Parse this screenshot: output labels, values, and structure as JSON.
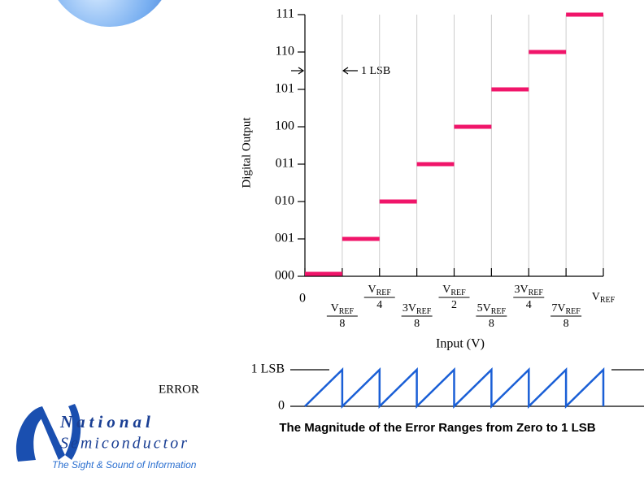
{
  "chart_data": [
    {
      "type": "step",
      "x_label": "Input (V)",
      "y_label": "Digital Output",
      "annotation": "1 LSB",
      "xlim": [
        0,
        1
      ],
      "ylim": [
        0,
        7
      ],
      "xticks": [
        0,
        {
          "value": 0.125,
          "label": {
            "num": "V",
            "sub": "REF",
            "den": "8"
          }
        },
        {
          "value": 0.25,
          "label": {
            "num": "V",
            "sub": "REF",
            "den": "4"
          }
        },
        {
          "value": 0.375,
          "label": {
            "num": "3V",
            "sub": "REF",
            "den": "8"
          }
        },
        {
          "value": 0.5,
          "label": {
            "num": "V",
            "sub": "REF",
            "den": "2"
          }
        },
        {
          "value": 0.625,
          "label": {
            "num": "5V",
            "sub": "REF",
            "den": "8"
          }
        },
        {
          "value": 0.75,
          "label": {
            "num": "3V",
            "sub": "REF",
            "den": "4"
          }
        },
        {
          "value": 0.875,
          "label": {
            "num": "7V",
            "sub": "REF",
            "den": "8"
          }
        },
        {
          "value": 1,
          "label": {
            "num": "V",
            "sub": "REF"
          }
        }
      ],
      "yticks": [
        {
          "value": 0,
          "label": "000"
        },
        {
          "value": 1,
          "label": "001"
        },
        {
          "value": 2,
          "label": "010"
        },
        {
          "value": 3,
          "label": "011"
        },
        {
          "value": 4,
          "label": "100"
        },
        {
          "value": 5,
          "label": "101"
        },
        {
          "value": 6,
          "label": "110"
        },
        {
          "value": 7,
          "label": "111"
        }
      ],
      "grid": true,
      "color": "#f0156a",
      "x": [
        0,
        0.125,
        0.25,
        0.375,
        0.5,
        0.625,
        0.75,
        0.875
      ],
      "values": [
        0,
        1,
        2,
        3,
        4,
        5,
        6,
        7
      ]
    },
    {
      "type": "line",
      "y_label": "ERROR",
      "caption": "The Magnitude of the Error Ranges from Zero to 1 LSB",
      "xlim": [
        0,
        1
      ],
      "ylim": [
        0,
        1
      ],
      "yticks": [
        0,
        {
          "value": 1,
          "label": "1 LSB"
        }
      ],
      "color": "#1a5fd6",
      "x": [
        0,
        0.125,
        0.125,
        0.25,
        0.25,
        0.375,
        0.375,
        0.5,
        0.5,
        0.625,
        0.625,
        0.75,
        0.75,
        0.875,
        0.875,
        1,
        1
      ],
      "values": [
        0,
        1,
        0,
        1,
        0,
        1,
        0,
        1,
        0,
        1,
        0,
        1,
        0,
        1,
        0,
        1,
        0
      ]
    }
  ],
  "logo": {
    "line1": "National",
    "line2": "Semiconductor",
    "tagline": "The Sight & Sound of Information"
  }
}
